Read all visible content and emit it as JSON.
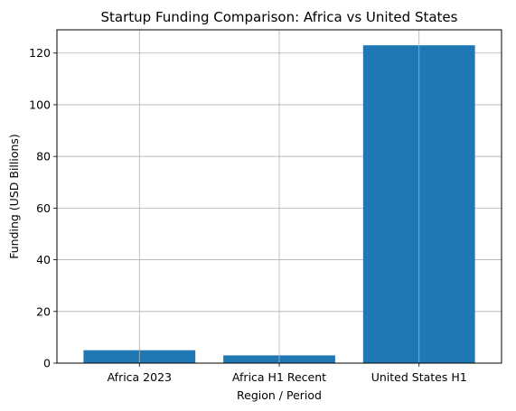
{
  "chart_data": {
    "type": "bar",
    "title": "Startup Funding Comparison: Africa vs United States",
    "xlabel": "Region / Period",
    "ylabel": "Funding (USD Billions)",
    "categories": [
      "Africa 2023",
      "Africa H1 Recent",
      "United States H1"
    ],
    "values": [
      5.0,
      3.0,
      123.0
    ],
    "ylim": [
      0,
      129
    ],
    "yticks": [
      0,
      20,
      40,
      60,
      80,
      100,
      120
    ],
    "grid": true,
    "bar_color": "#1f77b4",
    "grid_color": "#b0b0b0"
  }
}
